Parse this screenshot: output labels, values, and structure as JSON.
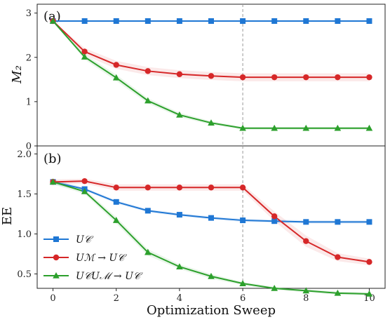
{
  "chart_data": [
    {
      "panel": "(a)",
      "type": "line",
      "ylabel": "M₂",
      "xlim": [
        -0.5,
        10.5
      ],
      "ylim": [
        0,
        3.2
      ],
      "yticks": [
        0,
        1,
        2,
        3
      ],
      "vline_x": 6,
      "series": [
        {
          "name": "U𝒞",
          "color": "#1f77d4",
          "marker": "square",
          "x": [
            0,
            1,
            2,
            3,
            4,
            5,
            6,
            7,
            8,
            9,
            10
          ],
          "values": [
            2.82,
            2.82,
            2.82,
            2.82,
            2.82,
            2.82,
            2.82,
            2.82,
            2.82,
            2.82,
            2.82
          ],
          "band": [
            0,
            0,
            0,
            0,
            0,
            0,
            0,
            0,
            0,
            0,
            0
          ]
        },
        {
          "name": "Uℳ → U𝒞",
          "color": "#d62728",
          "marker": "circle",
          "x": [
            0,
            1,
            2,
            3,
            4,
            5,
            6,
            7,
            8,
            9,
            10
          ],
          "values": [
            2.82,
            2.13,
            1.83,
            1.69,
            1.62,
            1.58,
            1.55,
            1.55,
            1.55,
            1.55,
            1.55
          ],
          "band": [
            0,
            0.08,
            0.09,
            0.09,
            0.09,
            0.09,
            0.09,
            0.09,
            0.09,
            0.09,
            0.09
          ]
        },
        {
          "name": "U𝒞Uℳ → U𝒞",
          "color": "#2ca02c",
          "marker": "triangle",
          "x": [
            0,
            1,
            2,
            3,
            4,
            5,
            6,
            7,
            8,
            9,
            10
          ],
          "values": [
            2.82,
            2.01,
            1.54,
            1.02,
            0.7,
            0.52,
            0.4,
            0.4,
            0.4,
            0.4,
            0.4
          ],
          "band": [
            0,
            0.06,
            0.07,
            0.06,
            0.05,
            0.04,
            0.03,
            0.03,
            0.03,
            0.03,
            0.03
          ]
        }
      ]
    },
    {
      "panel": "(b)",
      "type": "line",
      "ylabel": "EE",
      "xlabel": "Optimization Sweep",
      "xlim": [
        -0.5,
        10.5
      ],
      "ylim": [
        0.32,
        2.1
      ],
      "yticks": [
        0.5,
        1.0,
        1.5,
        2.0
      ],
      "xticks": [
        0,
        2,
        4,
        6,
        8,
        10
      ],
      "vline_x": 6,
      "series": [
        {
          "name": "U𝒞",
          "color": "#1f77d4",
          "marker": "square",
          "x": [
            0,
            1,
            2,
            3,
            4,
            5,
            6,
            7,
            8,
            9,
            10
          ],
          "values": [
            1.65,
            1.56,
            1.4,
            1.29,
            1.24,
            1.2,
            1.17,
            1.16,
            1.15,
            1.15,
            1.15
          ],
          "band": [
            0.03,
            0.02,
            0.02,
            0.02,
            0.02,
            0.02,
            0.02,
            0.02,
            0.02,
            0.02,
            0.02
          ]
        },
        {
          "name": "Uℳ → U𝒞",
          "color": "#d62728",
          "marker": "circle",
          "x": [
            0,
            1,
            2,
            3,
            4,
            5,
            6,
            7,
            8,
            9,
            10
          ],
          "values": [
            1.65,
            1.66,
            1.58,
            1.58,
            1.58,
            1.58,
            1.58,
            1.22,
            0.91,
            0.71,
            0.65
          ],
          "band": [
            0.03,
            0.03,
            0.04,
            0.04,
            0.04,
            0.04,
            0.04,
            0.06,
            0.07,
            0.05,
            0.04
          ]
        },
        {
          "name": "U𝒞Uℳ → U𝒞",
          "color": "#2ca02c",
          "marker": "triangle",
          "x": [
            0,
            1,
            2,
            3,
            4,
            5,
            6,
            7,
            8,
            9,
            10
          ],
          "values": [
            1.65,
            1.53,
            1.17,
            0.77,
            0.59,
            0.47,
            0.38,
            0.32,
            0.29,
            0.26,
            0.25
          ],
          "band": [
            0.03,
            0.03,
            0.04,
            0.04,
            0.03,
            0.03,
            0.02,
            0.02,
            0.02,
            0.02,
            0.02
          ]
        }
      ]
    }
  ],
  "legend": [
    {
      "text": "U𝒞",
      "color": "#1f77d4",
      "marker": "square"
    },
    {
      "text": "Uℳ → U𝒞",
      "color": "#d62728",
      "marker": "circle"
    },
    {
      "text": "U𝒞Uℳ → U𝒞",
      "color": "#2ca02c",
      "marker": "triangle"
    }
  ]
}
